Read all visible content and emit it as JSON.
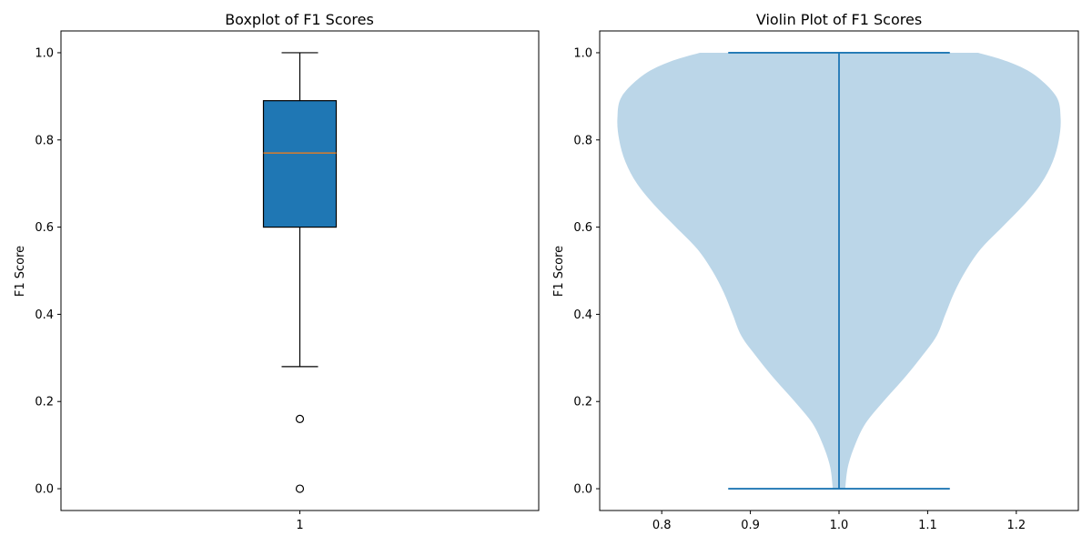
{
  "chart_data": [
    {
      "type": "boxplot",
      "title": "Boxplot of F1 Scores",
      "xlabel": "",
      "ylabel": "F1 Score",
      "ylim": [
        -0.05,
        1.05
      ],
      "xlim": [
        0.5,
        1.5
      ],
      "x_ticks": [
        "1"
      ],
      "y_ticks": [
        "0.0",
        "0.2",
        "0.4",
        "0.6",
        "0.8",
        "1.0"
      ],
      "box": {
        "position": 1,
        "q1": 0.6,
        "median": 0.77,
        "q3": 0.89,
        "whisker_low": 0.28,
        "whisker_high": 1.0,
        "outliers": [
          0.16,
          0.0
        ]
      },
      "colors": {
        "box_fill": "#1f77b4",
        "median": "#ff7f0e",
        "line": "#000000"
      }
    },
    {
      "type": "violin",
      "title": "Violin Plot of F1 Scores",
      "xlabel": "",
      "ylabel": "F1 Score",
      "ylim": [
        -0.05,
        1.05
      ],
      "xlim": [
        0.73,
        1.27
      ],
      "x_ticks": [
        "0.8",
        "0.9",
        "1.0",
        "1.1",
        "1.2"
      ],
      "y_ticks": [
        "0.0",
        "0.2",
        "0.4",
        "0.6",
        "0.8",
        "1.0"
      ],
      "violin": {
        "position": 1.0,
        "min": 0.0,
        "max": 1.0,
        "cap_halfwidth": 0.125,
        "density": [
          [
            0.0,
            0.007
          ],
          [
            0.05,
            0.01
          ],
          [
            0.1,
            0.018
          ],
          [
            0.15,
            0.03
          ],
          [
            0.2,
            0.05
          ],
          [
            0.25,
            0.072
          ],
          [
            0.3,
            0.092
          ],
          [
            0.35,
            0.11
          ],
          [
            0.4,
            0.12
          ],
          [
            0.45,
            0.13
          ],
          [
            0.5,
            0.143
          ],
          [
            0.55,
            0.16
          ],
          [
            0.6,
            0.184
          ],
          [
            0.65,
            0.208
          ],
          [
            0.7,
            0.228
          ],
          [
            0.75,
            0.241
          ],
          [
            0.8,
            0.248
          ],
          [
            0.85,
            0.25
          ],
          [
            0.9,
            0.245
          ],
          [
            0.95,
            0.22
          ],
          [
            0.98,
            0.19
          ],
          [
            1.0,
            0.157
          ]
        ]
      },
      "colors": {
        "body": "#1f77b4",
        "body_opacity": 0.3,
        "line": "#1f77b4"
      }
    }
  ]
}
